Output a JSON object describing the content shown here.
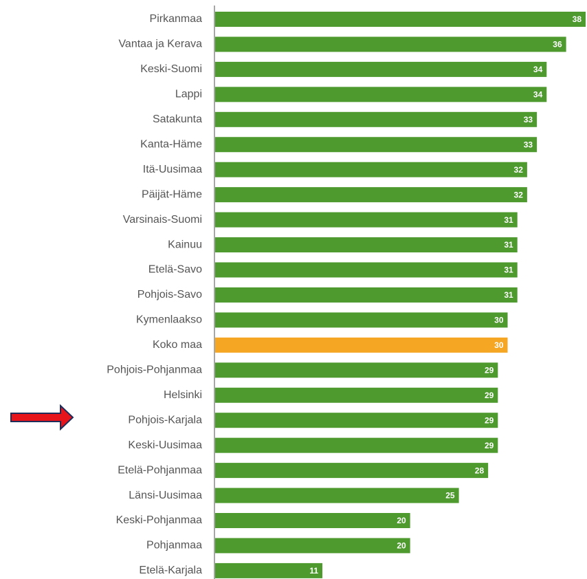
{
  "chart_data": {
    "type": "bar",
    "categories": [
      "Pirkanmaa",
      "Vantaa ja Kerava",
      "Keski-Suomi",
      "Lappi",
      "Satakunta",
      "Kanta-Häme",
      "Itä-Uusimaa",
      "Päijät-Häme",
      "Varsinais-Suomi",
      "Kainuu",
      "Etelä-Savo",
      "Pohjois-Savo",
      "Kymenlaakso",
      "Koko maa",
      "Pohjois-Pohjanmaa",
      "Helsinki",
      "Pohjois-Karjala",
      "Keski-Uusimaa",
      "Etelä-Pohjanmaa",
      "Länsi-Uusimaa",
      "Keski-Pohjanmaa",
      "Pohjanmaa",
      "Etelä-Karjala"
    ],
    "values": [
      38,
      36,
      34,
      34,
      33,
      33,
      32,
      32,
      31,
      31,
      31,
      31,
      30,
      30,
      29,
      29,
      29,
      29,
      28,
      25,
      20,
      20,
      11
    ],
    "colors": [
      "#4e9a2f",
      "#4e9a2f",
      "#4e9a2f",
      "#4e9a2f",
      "#4e9a2f",
      "#4e9a2f",
      "#4e9a2f",
      "#4e9a2f",
      "#4e9a2f",
      "#4e9a2f",
      "#4e9a2f",
      "#4e9a2f",
      "#4e9a2f",
      "#f5a623",
      "#4e9a2f",
      "#4e9a2f",
      "#4e9a2f",
      "#4e9a2f",
      "#4e9a2f",
      "#4e9a2f",
      "#4e9a2f",
      "#4e9a2f",
      "#4e9a2f"
    ]
  }
}
